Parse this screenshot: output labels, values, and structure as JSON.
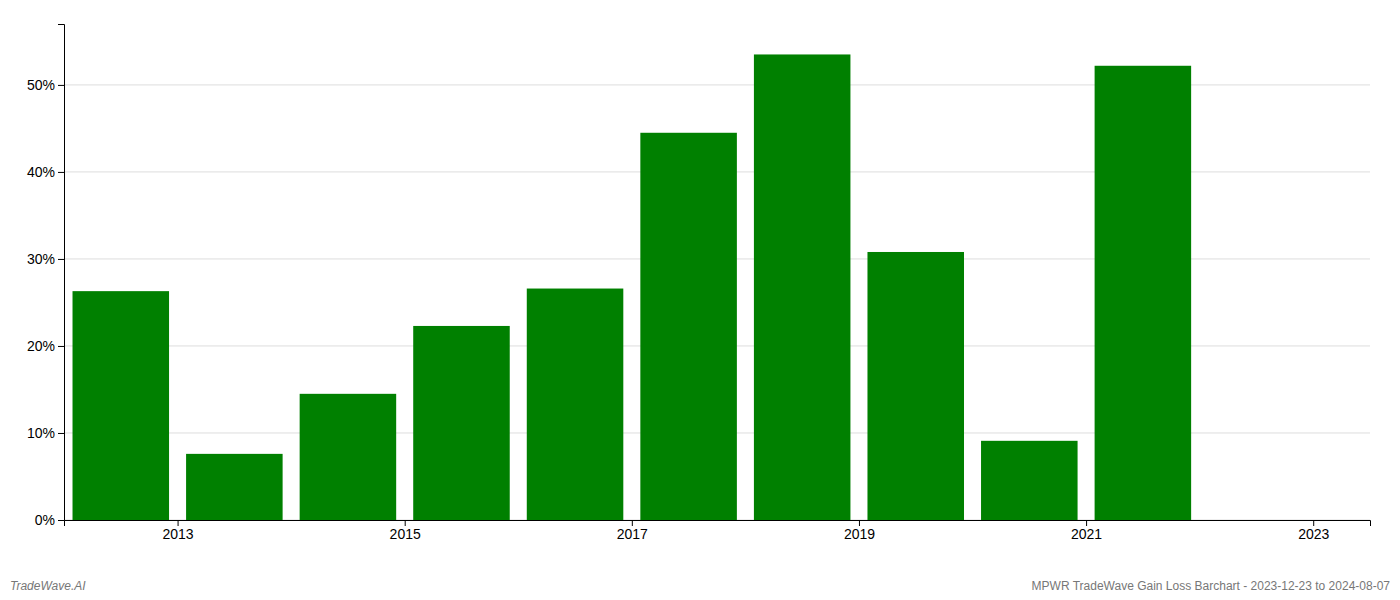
{
  "chart_data": {
    "type": "bar",
    "x": [
      2013,
      2014,
      2015,
      2016,
      2017,
      2018,
      2019,
      2020,
      2021,
      2022
    ],
    "values": [
      26.3,
      7.6,
      14.5,
      22.3,
      26.6,
      44.5,
      53.5,
      30.8,
      9.1,
      52.2
    ],
    "color": "#008000",
    "xlim": [
      2012.5,
      2024.0
    ],
    "xticks": [
      {
        "value": 2013.5,
        "label": "2013"
      },
      {
        "value": 2015.5,
        "label": "2015"
      },
      {
        "value": 2017.5,
        "label": "2017"
      },
      {
        "value": 2019.5,
        "label": "2019"
      },
      {
        "value": 2021.5,
        "label": "2021"
      },
      {
        "value": 2023.5,
        "label": "2023"
      }
    ],
    "ylim": [
      0,
      57
    ],
    "yticks": [
      {
        "value": 0,
        "label": "0%"
      },
      {
        "value": 10,
        "label": "10%"
      },
      {
        "value": 20,
        "label": "20%"
      },
      {
        "value": 30,
        "label": "30%"
      },
      {
        "value": 40,
        "label": "40%"
      },
      {
        "value": 50,
        "label": "50%"
      }
    ],
    "grid": true,
    "annotations": [
      "TradeWave.AI",
      "MPWR TradeWave Gain Loss Barchart - 2023-12-23 to 2024-08-07"
    ]
  }
}
